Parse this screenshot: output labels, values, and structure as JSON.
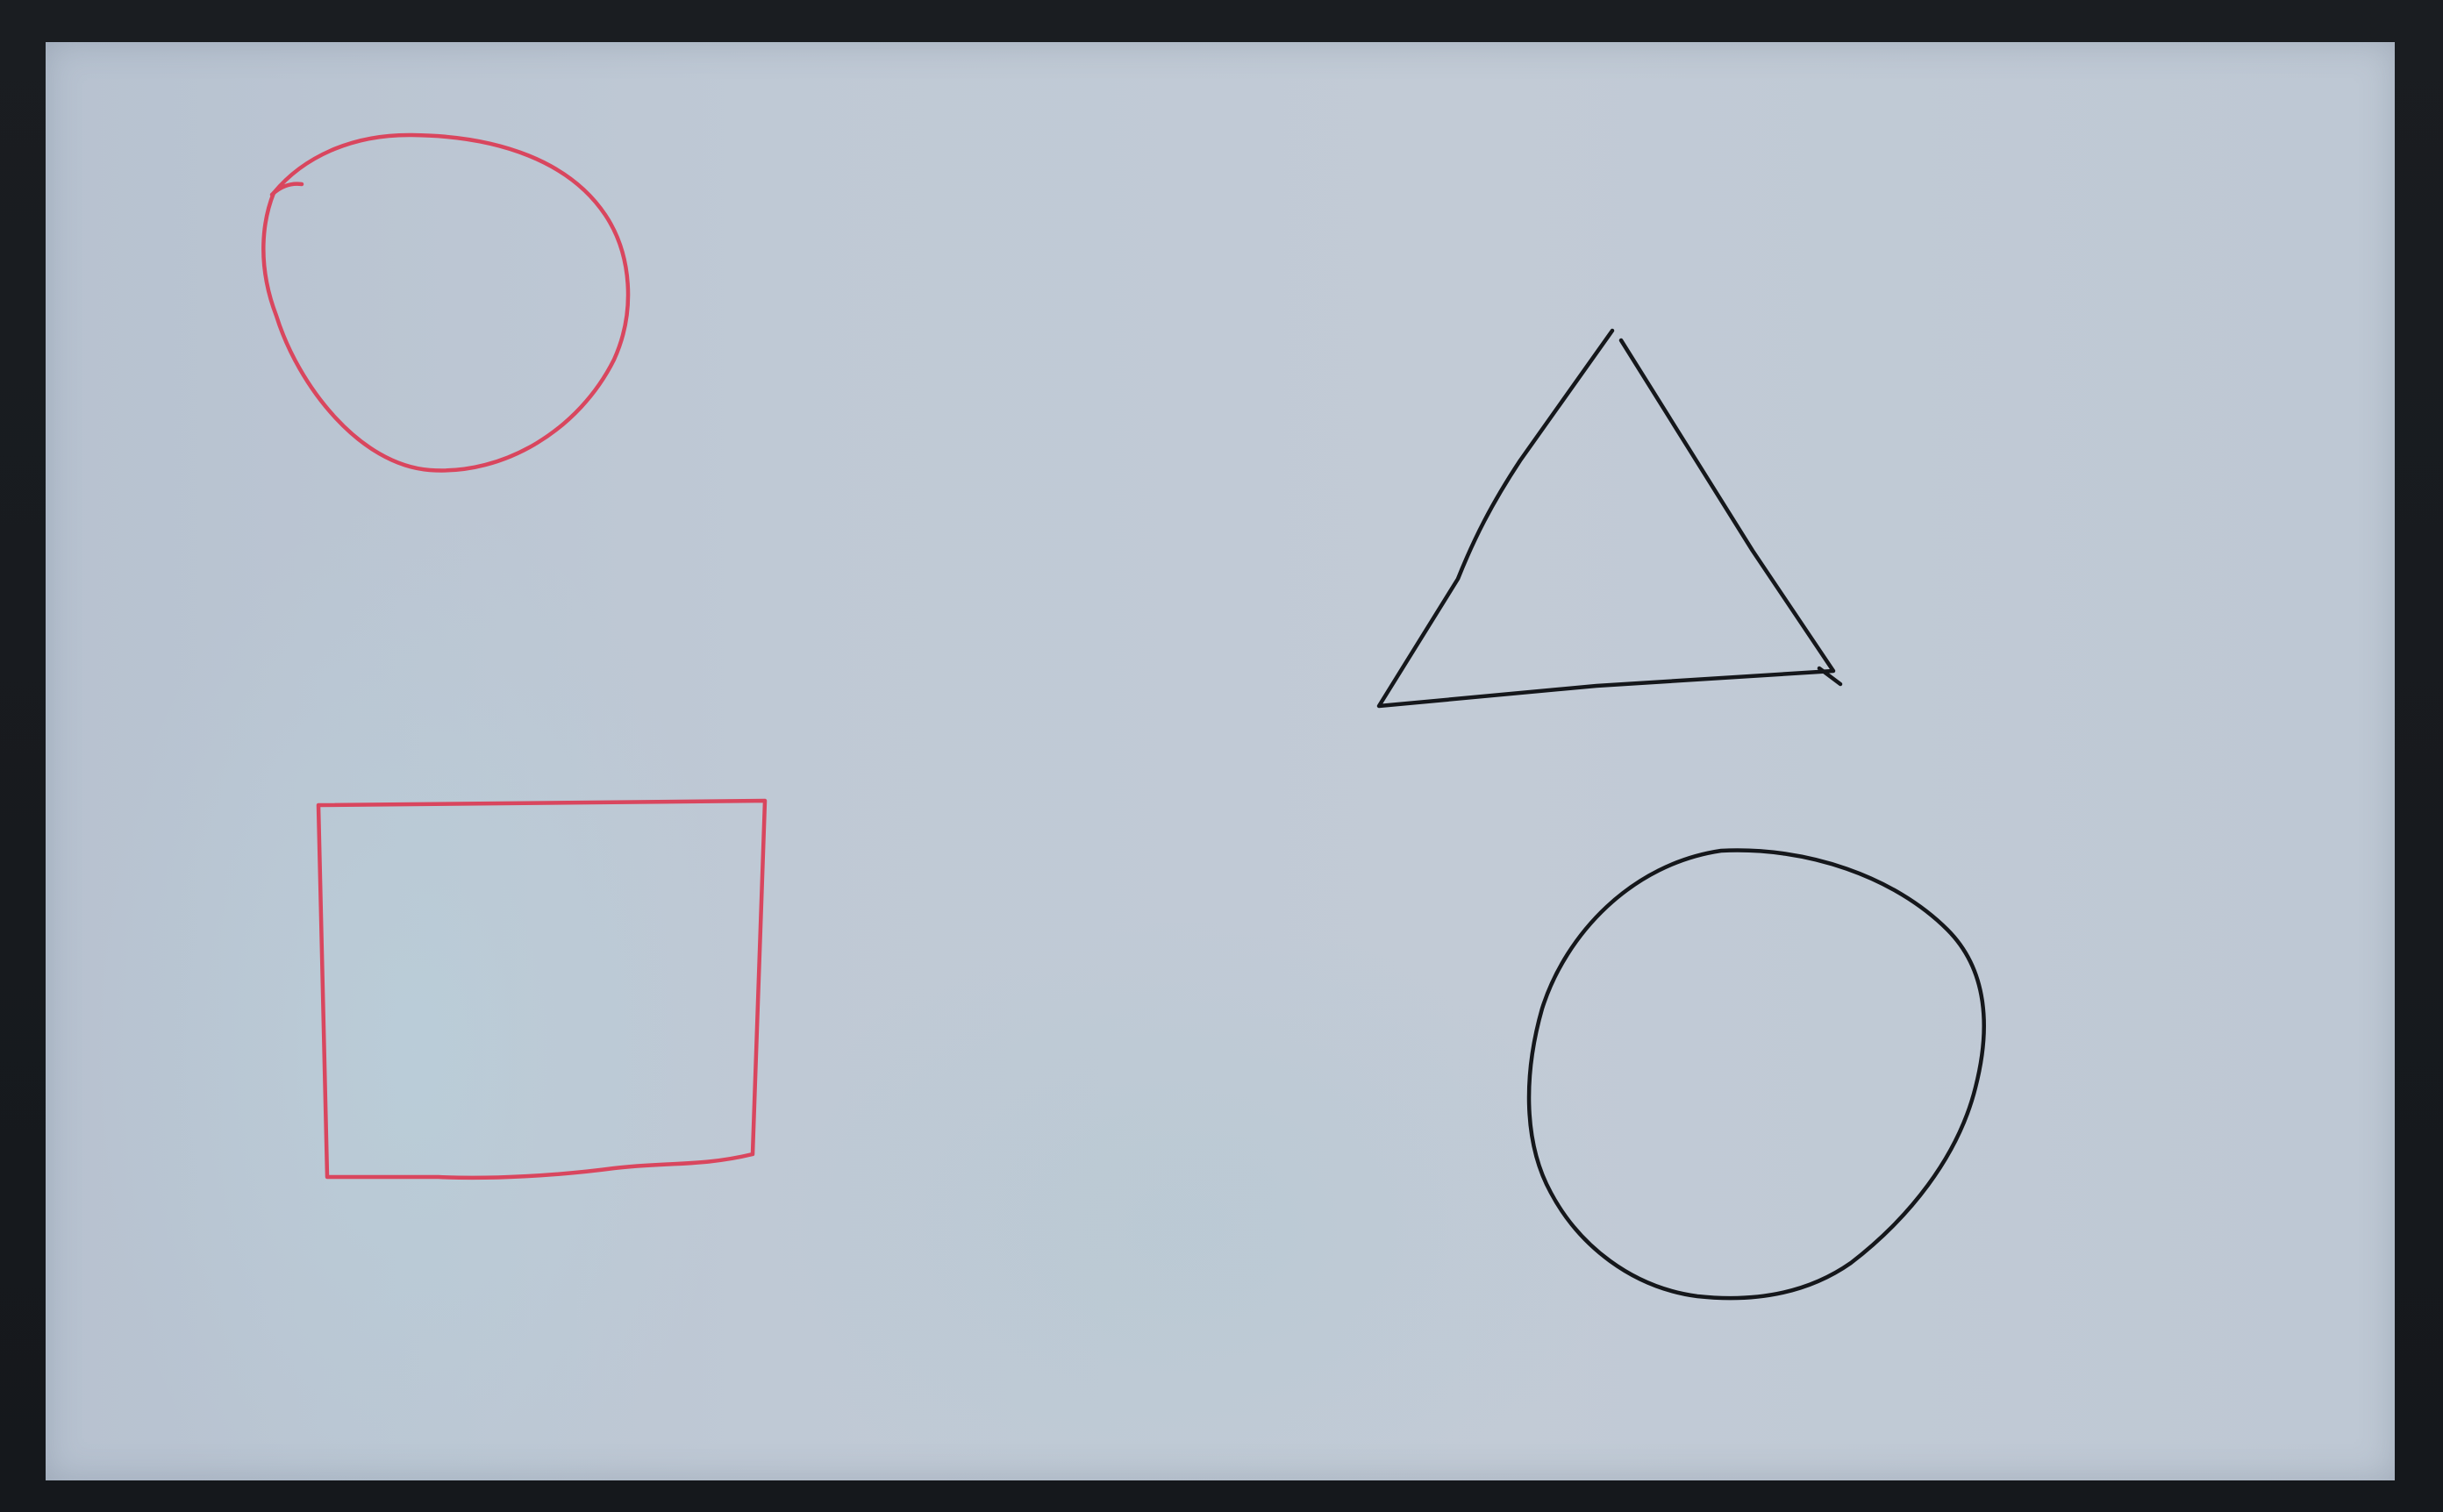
{
  "scene": {
    "subject": "whiteboard",
    "shapes": [
      {
        "kind": "circle",
        "color_name": "red",
        "color": "#d9465e"
      },
      {
        "kind": "square",
        "color_name": "red",
        "color": "#d9465e"
      },
      {
        "kind": "triangle",
        "color_name": "black",
        "color": "#15171b"
      },
      {
        "kind": "circle",
        "color_name": "black",
        "color": "#15171b"
      }
    ],
    "colors": {
      "board": "#c0cad6",
      "frame": "#1b1e22"
    }
  }
}
